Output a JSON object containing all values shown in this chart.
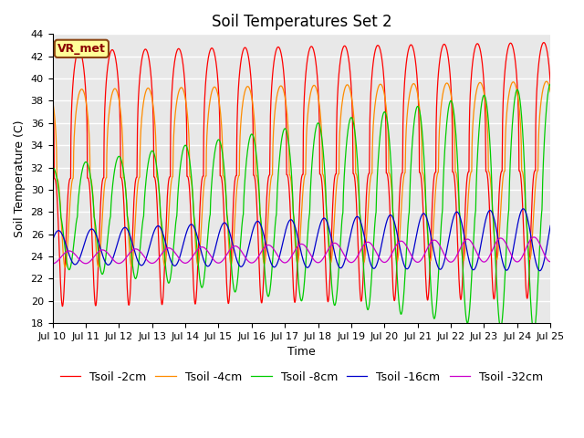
{
  "title": "Soil Temperatures Set 2",
  "xlabel": "Time",
  "ylabel": "Soil Temperature (C)",
  "ylim": [
    18,
    44
  ],
  "yticks": [
    18,
    20,
    22,
    24,
    26,
    28,
    30,
    32,
    34,
    36,
    38,
    40,
    42,
    44
  ],
  "x_start_day": 10,
  "x_end_day": 25,
  "x_tick_days": [
    10,
    11,
    12,
    13,
    14,
    15,
    16,
    17,
    18,
    19,
    20,
    21,
    22,
    23,
    24,
    25
  ],
  "series": [
    {
      "label": "Tsoil -2cm",
      "color": "#ff0000",
      "mean": 31.0,
      "amplitude": 11.5,
      "phase_shift": 0.0,
      "sharpness": 3.0,
      "amp_growth": 0.0
    },
    {
      "label": "Tsoil -4cm",
      "color": "#ff8c00",
      "mean": 31.0,
      "amplitude": 8.0,
      "phase_shift": 0.08,
      "sharpness": 2.5,
      "amp_growth": 0.0
    },
    {
      "label": "Tsoil -8cm",
      "color": "#00cc00",
      "mean": 27.5,
      "amplitude": 4.5,
      "phase_shift": 0.2,
      "sharpness": 1.5,
      "amp_growth": 0.1
    },
    {
      "label": "Tsoil -16cm",
      "color": "#0000cc",
      "mean": 24.8,
      "amplitude": 1.5,
      "phase_shift": 0.38,
      "sharpness": 1.0,
      "amp_growth": 0.06
    },
    {
      "label": "Tsoil -32cm",
      "color": "#cc00cc",
      "mean": 23.9,
      "amplitude": 0.55,
      "phase_shift": 0.7,
      "sharpness": 1.0,
      "amp_growth": 0.07
    }
  ],
  "legend_label": "VR_met",
  "background_color": "#e8e8e8",
  "grid_color": "#ffffff",
  "title_fontsize": 12,
  "axis_fontsize": 9,
  "tick_fontsize": 8,
  "legend_fontsize": 9,
  "figsize": [
    6.4,
    4.8
  ],
  "dpi": 100
}
